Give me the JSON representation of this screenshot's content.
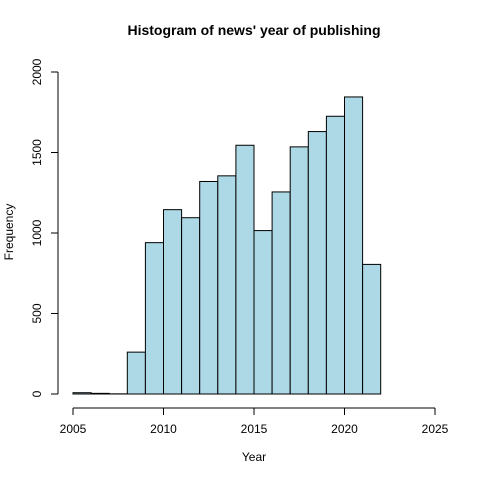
{
  "chart_data": {
    "type": "bar",
    "title": "Histogram of news' year of publishing",
    "xlabel": "Year",
    "ylabel": "Frequency",
    "xlim": [
      2005,
      2025
    ],
    "ylim": [
      0,
      2000
    ],
    "x_ticks": [
      2005,
      2010,
      2015,
      2020,
      2025
    ],
    "y_ticks": [
      0,
      500,
      1000,
      1500,
      2000
    ],
    "bin_width": 1,
    "bins": [
      {
        "start": 2005,
        "end": 2006,
        "value": 8
      },
      {
        "start": 2006,
        "end": 2007,
        "value": 4
      },
      {
        "start": 2007,
        "end": 2008,
        "value": 1
      },
      {
        "start": 2008,
        "end": 2009,
        "value": 260
      },
      {
        "start": 2009,
        "end": 2010,
        "value": 940
      },
      {
        "start": 2010,
        "end": 2011,
        "value": 1145
      },
      {
        "start": 2011,
        "end": 2012,
        "value": 1095
      },
      {
        "start": 2012,
        "end": 2013,
        "value": 1320
      },
      {
        "start": 2013,
        "end": 2014,
        "value": 1355
      },
      {
        "start": 2014,
        "end": 2015,
        "value": 1545
      },
      {
        "start": 2015,
        "end": 2016,
        "value": 1015
      },
      {
        "start": 2016,
        "end": 2017,
        "value": 1255
      },
      {
        "start": 2017,
        "end": 2018,
        "value": 1535
      },
      {
        "start": 2018,
        "end": 2019,
        "value": 1630
      },
      {
        "start": 2019,
        "end": 2020,
        "value": 1725
      },
      {
        "start": 2020,
        "end": 2021,
        "value": 1845
      },
      {
        "start": 2021,
        "end": 2022,
        "value": 805
      }
    ],
    "bar_color": "#add8e6",
    "grid": false,
    "legend": "none"
  }
}
